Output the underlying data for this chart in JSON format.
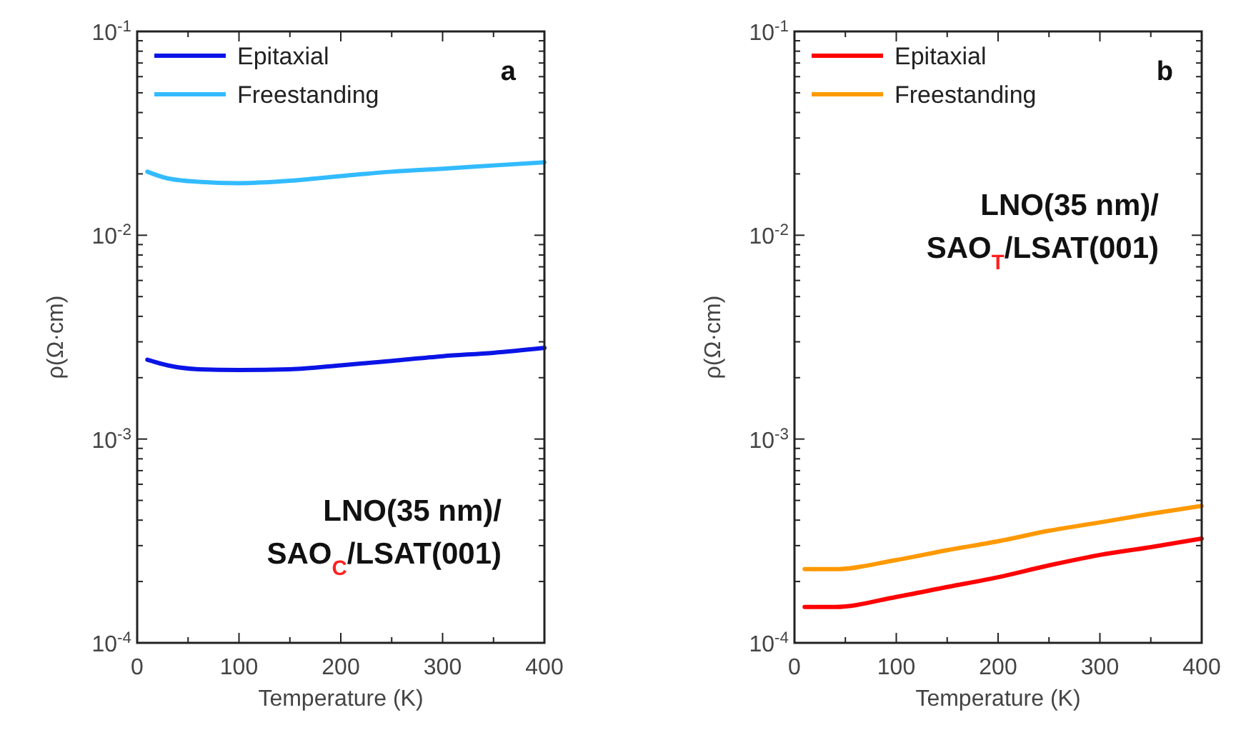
{
  "chart_data": [
    {
      "type": "line",
      "xlabel": "Temperature (K)",
      "ylabel": "ρ(Ω·cm)",
      "log": "y",
      "legend": "top left",
      "grid": false,
      "xlim": [
        0,
        400
      ],
      "xticks": [
        0,
        100,
        200,
        300,
        400
      ],
      "ylim": [
        0.0001,
        0.1
      ],
      "yticks": [
        {
          "value": 0.0001,
          "label": "10$^{-4}$"
        },
        {
          "value": 0.001,
          "label": "10$^{-3}$"
        },
        {
          "value": 0.01,
          "label": "10$^{-2}$"
        },
        {
          "value": 0.1,
          "label": "10$^{-1}$"
        }
      ],
      "x": [
        10,
        30,
        60,
        100,
        150,
        200,
        250,
        300,
        350,
        400
      ],
      "series": [
        {
          "name": "Epitaxial",
          "color": "#0a14e6",
          "values": [
            0.00245,
            0.0023,
            0.0022,
            0.00218,
            0.0022,
            0.0023,
            0.00242,
            0.00255,
            0.00265,
            0.0028
          ]
        },
        {
          "name": "Freestanding",
          "color": "#33bbff",
          "values": [
            0.0205,
            0.019,
            0.0183,
            0.018,
            0.0185,
            0.0195,
            0.0205,
            0.0212,
            0.022,
            0.0228
          ]
        }
      ],
      "annotations": [
        "a",
        "LNO(35 nm)/",
        "SAO$_{C}$/LSAT(001)"
      ]
    },
    {
      "type": "line",
      "xlabel": "Temperature (K)",
      "ylabel": "ρ(Ω·cm)",
      "log": "y",
      "legend": "top left",
      "grid": false,
      "xlim": [
        0,
        400
      ],
      "xticks": [
        0,
        100,
        200,
        300,
        400
      ],
      "ylim": [
        0.0001,
        0.1
      ],
      "yticks": [
        {
          "value": 0.0001,
          "label": "10$^{-4}$"
        },
        {
          "value": 0.001,
          "label": "10$^{-3}$"
        },
        {
          "value": 0.01,
          "label": "10$^{-2}$"
        },
        {
          "value": 0.1,
          "label": "10$^{-1}$"
        }
      ],
      "x": [
        10,
        40,
        100,
        150,
        200,
        250,
        300,
        350,
        400
      ],
      "series": [
        {
          "name": "Epitaxial",
          "color": "#ff0000",
          "values": [
            0.00015,
            0.00015,
            0.000168,
            0.000188,
            0.00021,
            0.00024,
            0.00027,
            0.000295,
            0.000325
          ]
        },
        {
          "name": "Freestanding",
          "color": "#ff9900",
          "values": [
            0.00023,
            0.00023,
            0.000255,
            0.000285,
            0.000315,
            0.000355,
            0.00039,
            0.00043,
            0.00047
          ]
        }
      ],
      "annotations": [
        "b",
        "LNO(35 nm)/",
        "SAO$_{T}$/LSAT(001)"
      ]
    }
  ]
}
